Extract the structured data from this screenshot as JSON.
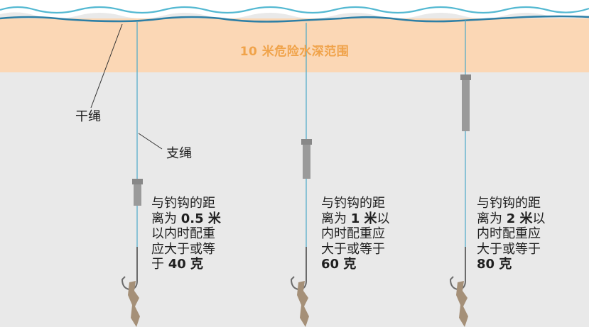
{
  "danger_zone": {
    "label": "10 米危险水深范围",
    "color": "#fbd7b5",
    "label_color": "#f0a34a"
  },
  "labels": {
    "main_line": "干绳",
    "branch_line": "支绳"
  },
  "rigs": [
    {
      "line1": "与钓钩的距",
      "line2_prefix": "离为 ",
      "distance": "0.5 米",
      "line3": "以内时配重",
      "line4": "应大于或等",
      "line5_prefix": "于 ",
      "weight": "40 克"
    },
    {
      "line1": "与钓钩的距",
      "line2_prefix": "离为 ",
      "distance": "1 米",
      "line2_suffix": "以",
      "line3": "内时配重应",
      "line4": "大于或等于",
      "weight": "60 克"
    },
    {
      "line1": "与钓钩的距",
      "line2_prefix": "离为 ",
      "distance": "2 米",
      "line2_suffix": "以",
      "line3": "内时配重应",
      "line4": "大于或等于",
      "weight": "80 克"
    }
  ],
  "colors": {
    "water_line": "#3aa6c4",
    "water_dark": "#2d7fa6",
    "sinker": "#9a9a9a",
    "bait": "#a59078",
    "hook": "#6b6b6b"
  }
}
